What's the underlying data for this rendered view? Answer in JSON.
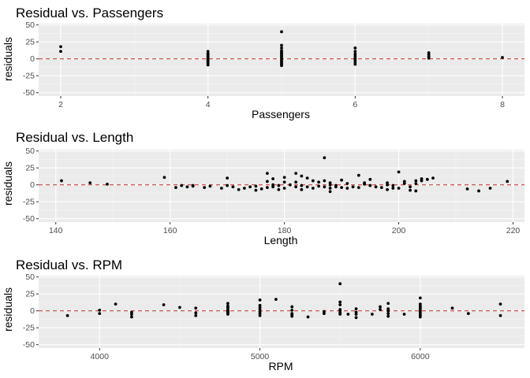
{
  "colors": {
    "panel_background": "#ebebeb",
    "grid_major": "#ffffff",
    "grid_minor": "#f5f5f5",
    "point": "#000000",
    "zero_line": "#c8413f",
    "axis_text": "#4d4d4d",
    "title_text": "#000000"
  },
  "chart_data": [
    {
      "type": "scatter",
      "title": "Residual vs. Passengers",
      "xlabel": "Passengers",
      "ylabel": "residuals",
      "xlim": [
        1.7,
        8.3
      ],
      "ylim": [
        -55,
        52
      ],
      "x_ticks": [
        2,
        4,
        6,
        8
      ],
      "y_ticks": [
        -50,
        -25,
        0,
        25,
        50
      ],
      "reference_line": 0,
      "grid": true,
      "points": [
        [
          2,
          18
        ],
        [
          2,
          11
        ],
        [
          4,
          11
        ],
        [
          4,
          8
        ],
        [
          4,
          6
        ],
        [
          4,
          4
        ],
        [
          4,
          2
        ],
        [
          4,
          1
        ],
        [
          4,
          -1
        ],
        [
          4,
          -2
        ],
        [
          4,
          -4
        ],
        [
          4,
          -5
        ],
        [
          4,
          -7
        ],
        [
          4,
          -9
        ],
        [
          5,
          40
        ],
        [
          5,
          20
        ],
        [
          5,
          16
        ],
        [
          5,
          12
        ],
        [
          5,
          10
        ],
        [
          5,
          8
        ],
        [
          5,
          6
        ],
        [
          5,
          4
        ],
        [
          5,
          2
        ],
        [
          5,
          0
        ],
        [
          5,
          -2
        ],
        [
          5,
          -4
        ],
        [
          5,
          -6
        ],
        [
          5,
          -8
        ],
        [
          5,
          -10
        ],
        [
          6,
          16
        ],
        [
          6,
          11
        ],
        [
          6,
          7
        ],
        [
          6,
          4
        ],
        [
          6,
          1
        ],
        [
          6,
          -2
        ],
        [
          6,
          -5
        ],
        [
          6,
          -8
        ],
        [
          7,
          9
        ],
        [
          7,
          6
        ],
        [
          7,
          3
        ],
        [
          7,
          1
        ],
        [
          8,
          2
        ]
      ]
    },
    {
      "type": "scatter",
      "title": "Residual vs. Length",
      "xlabel": "Length",
      "ylabel": "residuals",
      "xlim": [
        137,
        222
      ],
      "ylim": [
        -55,
        52
      ],
      "x_ticks": [
        140,
        160,
        180,
        200,
        220
      ],
      "y_ticks": [
        -50,
        -25,
        0,
        25,
        50
      ],
      "reference_line": 0,
      "grid": true,
      "points": [
        [
          141,
          6
        ],
        [
          146,
          3
        ],
        [
          149,
          1
        ],
        [
          159,
          11
        ],
        [
          161,
          -4
        ],
        [
          162,
          -1
        ],
        [
          163,
          -3
        ],
        [
          164,
          -1
        ],
        [
          164,
          -2
        ],
        [
          166,
          -4
        ],
        [
          167,
          -2
        ],
        [
          169,
          -5
        ],
        [
          170,
          10
        ],
        [
          170,
          -1
        ],
        [
          171,
          -3
        ],
        [
          172,
          -7
        ],
        [
          173,
          -5
        ],
        [
          174,
          -3
        ],
        [
          175,
          -2
        ],
        [
          175,
          -8
        ],
        [
          176,
          -6
        ],
        [
          177,
          17
        ],
        [
          177,
          5
        ],
        [
          177,
          -4
        ],
        [
          178,
          0
        ],
        [
          178,
          -3
        ],
        [
          178,
          9
        ],
        [
          179,
          -7
        ],
        [
          179,
          -1
        ],
        [
          180,
          4
        ],
        [
          180,
          11
        ],
        [
          180,
          -5
        ],
        [
          181,
          0
        ],
        [
          182,
          4
        ],
        [
          182,
          -3
        ],
        [
          182,
          17
        ],
        [
          183,
          -1
        ],
        [
          183,
          13
        ],
        [
          183,
          -7
        ],
        [
          184,
          -3
        ],
        [
          184,
          10
        ],
        [
          185,
          6
        ],
        [
          185,
          -5
        ],
        [
          186,
          -2
        ],
        [
          186,
          4
        ],
        [
          187,
          40
        ],
        [
          187,
          6
        ],
        [
          187,
          -3
        ],
        [
          188,
          -10
        ],
        [
          188,
          -5
        ],
        [
          188,
          0
        ],
        [
          188,
          3
        ],
        [
          189,
          -3
        ],
        [
          189,
          -1
        ],
        [
          190,
          7
        ],
        [
          190,
          -4
        ],
        [
          191,
          2
        ],
        [
          191,
          -5
        ],
        [
          192,
          -3
        ],
        [
          193,
          14
        ],
        [
          193,
          -4
        ],
        [
          194,
          1
        ],
        [
          194,
          3
        ],
        [
          195,
          8
        ],
        [
          195,
          -1
        ],
        [
          196,
          -3
        ],
        [
          197,
          -4
        ],
        [
          198,
          0
        ],
        [
          198,
          3
        ],
        [
          198,
          -7
        ],
        [
          199,
          -5
        ],
        [
          199,
          -1
        ],
        [
          200,
          -5
        ],
        [
          200,
          19
        ],
        [
          201,
          5
        ],
        [
          201,
          2
        ],
        [
          202,
          -3
        ],
        [
          202,
          -8
        ],
        [
          203,
          6
        ],
        [
          203,
          2
        ],
        [
          203,
          -9
        ],
        [
          204,
          6
        ],
        [
          204,
          9
        ],
        [
          205,
          8
        ],
        [
          206,
          10
        ],
        [
          212,
          -6
        ],
        [
          214,
          -9
        ],
        [
          216,
          -5
        ],
        [
          219,
          5
        ]
      ]
    },
    {
      "type": "scatter",
      "title": "Residual vs. RPM",
      "xlabel": "RPM",
      "ylabel": "residuals",
      "xlim": [
        3620,
        6650
      ],
      "ylim": [
        -55,
        52
      ],
      "x_ticks": [
        4000,
        5000,
        6000
      ],
      "y_ticks": [
        -50,
        -25,
        0,
        25,
        50
      ],
      "reference_line": 0,
      "grid": true,
      "points": [
        [
          3800,
          -7
        ],
        [
          4000,
          1
        ],
        [
          4000,
          -4
        ],
        [
          4100,
          10
        ],
        [
          4200,
          -2
        ],
        [
          4200,
          -5
        ],
        [
          4200,
          -9
        ],
        [
          4400,
          9
        ],
        [
          4500,
          5
        ],
        [
          4600,
          4
        ],
        [
          4600,
          -3
        ],
        [
          4600,
          -7
        ],
        [
          4800,
          11
        ],
        [
          4800,
          7
        ],
        [
          4800,
          5
        ],
        [
          4800,
          2
        ],
        [
          4800,
          0
        ],
        [
          4800,
          -1
        ],
        [
          4800,
          -3
        ],
        [
          4800,
          -5
        ],
        [
          5000,
          16
        ],
        [
          5000,
          8
        ],
        [
          5000,
          5
        ],
        [
          5000,
          2
        ],
        [
          5000,
          -1
        ],
        [
          5000,
          -4
        ],
        [
          5000,
          -7
        ],
        [
          5100,
          17
        ],
        [
          5200,
          6
        ],
        [
          5200,
          1
        ],
        [
          5200,
          -4
        ],
        [
          5200,
          -6
        ],
        [
          5200,
          -8
        ],
        [
          5300,
          -9
        ],
        [
          5400,
          -1
        ],
        [
          5400,
          -4
        ],
        [
          5500,
          40
        ],
        [
          5500,
          13
        ],
        [
          5500,
          9
        ],
        [
          5500,
          2
        ],
        [
          5500,
          0
        ],
        [
          5500,
          -3
        ],
        [
          5500,
          -5
        ],
        [
          5550,
          -5
        ],
        [
          5600,
          3
        ],
        [
          5600,
          -2
        ],
        [
          5600,
          -5
        ],
        [
          5600,
          -10
        ],
        [
          5700,
          -5
        ],
        [
          5750,
          6
        ],
        [
          5750,
          2
        ],
        [
          5800,
          11
        ],
        [
          5800,
          3
        ],
        [
          5800,
          0
        ],
        [
          5800,
          -4
        ],
        [
          5800,
          -8
        ],
        [
          5900,
          -5
        ],
        [
          6000,
          19
        ],
        [
          6000,
          10
        ],
        [
          6000,
          7
        ],
        [
          6000,
          5
        ],
        [
          6000,
          3
        ],
        [
          6000,
          0
        ],
        [
          6000,
          -3
        ],
        [
          6000,
          -6
        ],
        [
          6000,
          -9
        ],
        [
          6200,
          4
        ],
        [
          6300,
          -4
        ],
        [
          6500,
          10
        ],
        [
          6500,
          -7
        ]
      ]
    }
  ]
}
